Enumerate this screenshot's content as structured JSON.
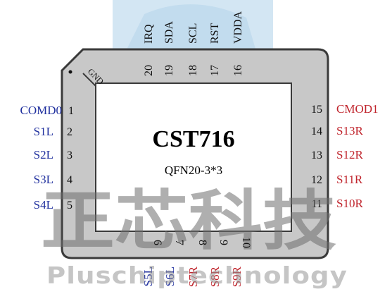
{
  "chip": {
    "name": "CST716",
    "package": "QFN20-3*3",
    "gnd_label": "GND"
  },
  "pins": {
    "left": [
      {
        "num": "1",
        "name": "COMD0"
      },
      {
        "num": "2",
        "name": "S1L"
      },
      {
        "num": "3",
        "name": "S2L"
      },
      {
        "num": "4",
        "name": "S3L"
      },
      {
        "num": "5",
        "name": "S4L"
      }
    ],
    "bottom": [
      {
        "num": "6",
        "name": "S5L",
        "color": "#1f2f9e"
      },
      {
        "num": "7",
        "name": "S6L",
        "color": "#1f2f9e"
      },
      {
        "num": "8",
        "name": "S7R",
        "color": "#c0242c"
      },
      {
        "num": "9",
        "name": "S8R",
        "color": "#c0242c"
      },
      {
        "num": "10",
        "name": "S9R",
        "color": "#c0242c"
      }
    ],
    "right": [
      {
        "num": "11",
        "name": "S10R"
      },
      {
        "num": "12",
        "name": "S11R"
      },
      {
        "num": "13",
        "name": "S12R"
      },
      {
        "num": "14",
        "name": "S13R"
      },
      {
        "num": "15",
        "name": "CMOD1"
      }
    ],
    "top": [
      {
        "num": "16",
        "name": "VDDA"
      },
      {
        "num": "17",
        "name": "RST"
      },
      {
        "num": "18",
        "name": "SCL"
      },
      {
        "num": "19",
        "name": "SDA"
      },
      {
        "num": "20",
        "name": "IRQ"
      }
    ]
  },
  "watermark": {
    "cn": "正芯科技",
    "en": "Pluschiptechnology"
  },
  "colors": {
    "left_pins": "#1f2f9e",
    "right_pins": "#c0242c",
    "package_fill": "#c8c8c8",
    "package_border": "#3a3a3a"
  }
}
